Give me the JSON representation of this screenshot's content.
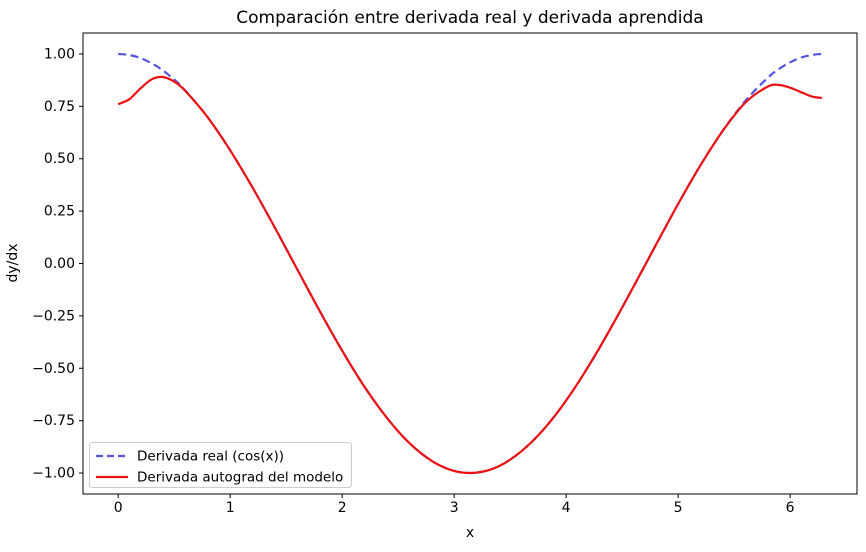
{
  "chart_data": {
    "type": "line",
    "title": "Comparación entre derivada real y derivada aprendida",
    "xlabel": "x",
    "ylabel": "dy/dx",
    "xlim": [
      -0.314,
      6.597
    ],
    "ylim": [
      -1.1,
      1.1
    ],
    "grid": false,
    "legend_position": "lower left",
    "xticks": {
      "values": [
        0,
        1,
        2,
        3,
        4,
        5,
        6
      ],
      "labels": [
        "0",
        "1",
        "2",
        "3",
        "4",
        "5",
        "6"
      ]
    },
    "yticks": {
      "values": [
        1.0,
        0.75,
        0.5,
        0.25,
        0.0,
        -0.25,
        -0.5,
        -0.75,
        -1.0
      ],
      "labels": [
        "1.00",
        "0.75",
        "0.50",
        "0.25",
        "0.00",
        "−0.25",
        "−0.50",
        "−0.75",
        "−1.00"
      ]
    },
    "x": [
      0,
      0.1,
      0.2,
      0.3,
      0.4,
      0.5,
      0.6,
      0.8,
      1.0,
      1.2,
      1.4,
      1.6,
      1.8,
      2.0,
      2.2,
      2.4,
      2.6,
      2.8,
      3.0,
      3.2,
      3.4,
      3.6,
      3.8,
      4.0,
      4.2,
      4.4,
      4.6,
      4.8,
      5.0,
      5.2,
      5.4,
      5.6,
      5.8,
      5.9,
      6.0,
      6.1,
      6.2,
      6.283
    ],
    "series": [
      {
        "name": "Derivada real (cos(x))",
        "color": "#5353e0",
        "style": "dashed",
        "values": [
          1.0,
          0.995,
          0.98,
          0.955,
          0.921,
          0.878,
          0.825,
          0.697,
          0.54,
          0.362,
          0.17,
          -0.029,
          -0.227,
          -0.416,
          -0.589,
          -0.737,
          -0.857,
          -0.942,
          -0.99,
          -0.998,
          -0.967,
          -0.896,
          -0.791,
          -0.654,
          -0.49,
          -0.307,
          -0.112,
          0.087,
          0.284,
          0.469,
          0.635,
          0.776,
          0.886,
          0.928,
          0.96,
          0.983,
          0.996,
          1.0
        ]
      },
      {
        "name": "Derivada autograd del modelo",
        "color": "#ec1212",
        "style": "solid",
        "values": [
          0.76,
          0.784,
          0.836,
          0.879,
          0.89,
          0.868,
          0.823,
          0.697,
          0.54,
          0.362,
          0.17,
          -0.029,
          -0.227,
          -0.416,
          -0.589,
          -0.737,
          -0.857,
          -0.942,
          -0.99,
          -0.998,
          -0.967,
          -0.896,
          -0.791,
          -0.654,
          -0.49,
          -0.307,
          -0.112,
          0.087,
          0.284,
          0.469,
          0.634,
          0.768,
          0.844,
          0.852,
          0.839,
          0.817,
          0.796,
          0.79
        ]
      }
    ]
  }
}
